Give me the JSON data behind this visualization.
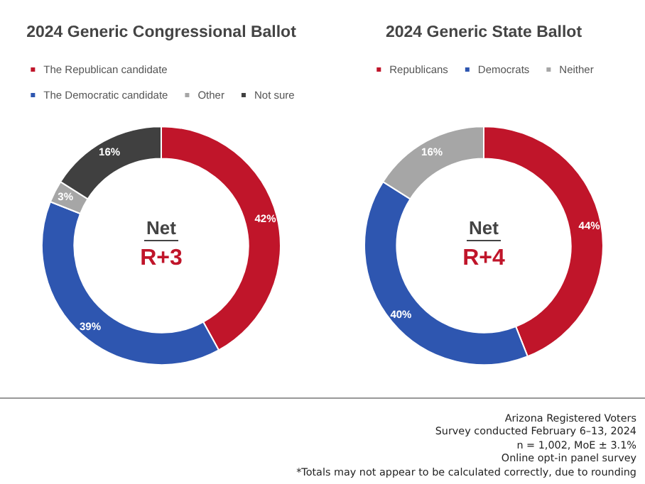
{
  "chart_data": [
    {
      "type": "donut",
      "title": "2024 Generic Congressional Ballot",
      "categories": [
        "The Republican candidate",
        "The Democratic candidate",
        "Other",
        "Not sure"
      ],
      "values": [
        42,
        39,
        3,
        16
      ],
      "colors": [
        "#c0152a",
        "#2e56b0",
        "#a6a6a6",
        "#404040"
      ],
      "value_labels": [
        "42%",
        "39%",
        "3%",
        "16%"
      ],
      "legend": "top",
      "annotations": [
        "Net",
        "R+3"
      ]
    },
    {
      "type": "donut",
      "title": "2024 Generic State Ballot",
      "categories": [
        "Republicans",
        "Democrats",
        "Neither"
      ],
      "values": [
        44,
        40,
        16
      ],
      "colors": [
        "#c0152a",
        "#2e56b0",
        "#a6a6a6"
      ],
      "value_labels": [
        "44%",
        "40%",
        "16%"
      ],
      "legend": "top",
      "annotations": [
        "Net",
        "R+4",
        "Arizona Registered Voters",
        "Survey conducted February 6–13, 2024",
        "n = 1,002, MoE ± 3.1%",
        "Online opt-in panel survey",
        "*Totals may not appear to be calculated correctly, due to rounding"
      ]
    }
  ]
}
